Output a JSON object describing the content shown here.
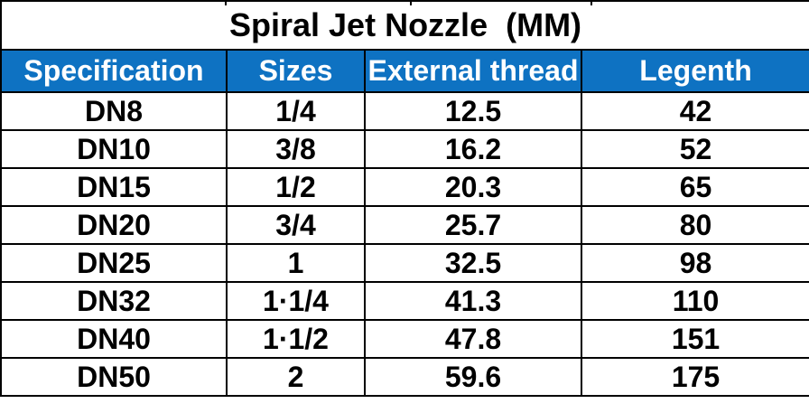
{
  "title": "Spiral Jet Nozzle  (MM)",
  "accent_color": "#0E72C2",
  "border_color": "#000000",
  "header_text_color": "#FFFFFF",
  "table": {
    "columns": [
      "Specification",
      "Sizes",
      "External thread",
      "Legenth"
    ],
    "rows": [
      [
        "DN8",
        "1/4",
        "12.5",
        "42"
      ],
      [
        "DN10",
        "3/8",
        "16.2",
        "52"
      ],
      [
        "DN15",
        "1/2",
        "20.3",
        "65"
      ],
      [
        "DN20",
        "3/4",
        "25.7",
        "80"
      ],
      [
        "DN25",
        "1",
        "32.5",
        "98"
      ],
      [
        "DN32",
        "1·1/4",
        "41.3",
        "110"
      ],
      [
        "DN40",
        "1·1/2",
        "47.8",
        "151"
      ],
      [
        "DN50",
        "2",
        "59.6",
        "175"
      ]
    ]
  },
  "chart_data": {
    "type": "table",
    "title": "Spiral Jet Nozzle  (MM)",
    "columns": [
      "Specification",
      "Sizes",
      "External thread",
      "Legenth"
    ],
    "rows": [
      [
        "DN8",
        "1/4",
        12.5,
        42
      ],
      [
        "DN10",
        "3/8",
        16.2,
        52
      ],
      [
        "DN15",
        "1/2",
        20.3,
        65
      ],
      [
        "DN20",
        "3/4",
        25.7,
        80
      ],
      [
        "DN25",
        "1",
        32.5,
        98
      ],
      [
        "DN32",
        "1·1/4",
        41.3,
        110
      ],
      [
        "DN40",
        "1·1/2",
        47.8,
        151
      ],
      [
        "DN50",
        "2",
        59.6,
        175
      ]
    ]
  }
}
